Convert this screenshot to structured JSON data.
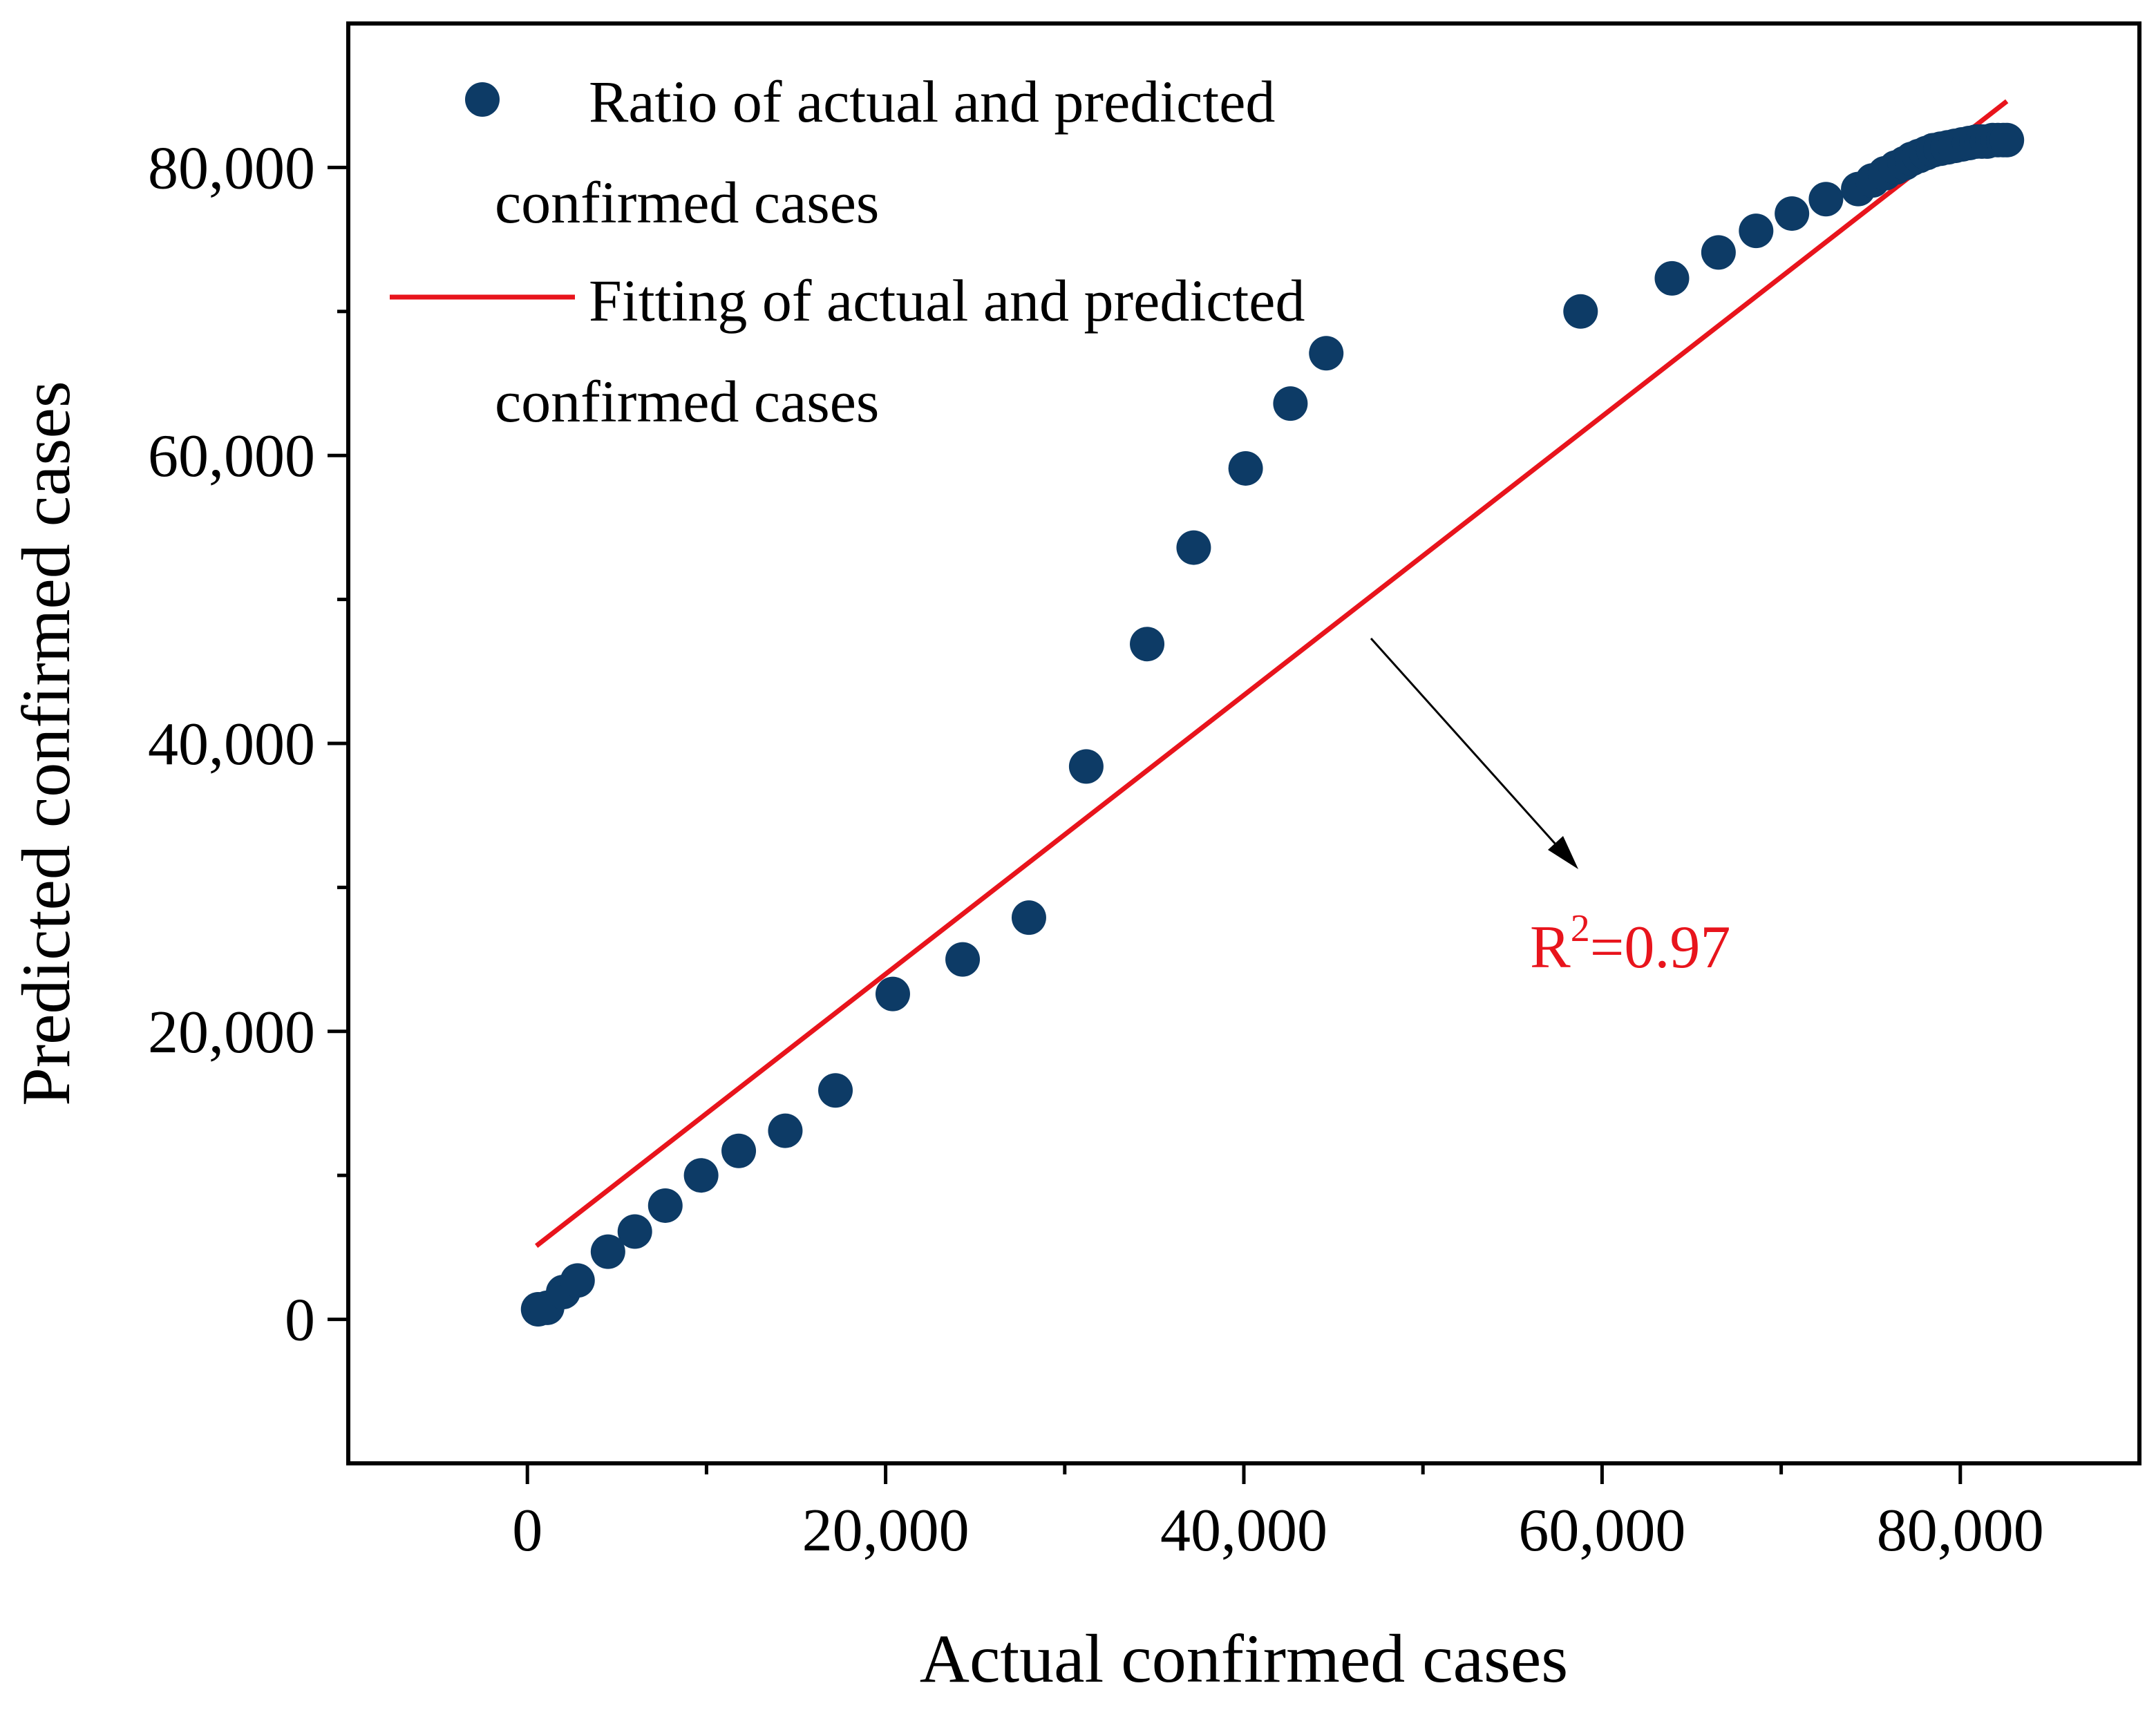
{
  "chart_data": {
    "type": "scatter",
    "xlabel": "Actual confirmed cases",
    "ylabel": "Predicted confirmed cases",
    "xlim": [
      -10000,
      90000
    ],
    "ylim": [
      -10000,
      90000
    ],
    "x_ticks": [
      0,
      20000,
      40000,
      60000,
      80000
    ],
    "x_tick_labels": [
      "0",
      "20,000",
      "40,000",
      "60,000",
      "80,000"
    ],
    "x_minor_ticks": [
      10000,
      30000,
      50000,
      70000
    ],
    "y_ticks": [
      0,
      20000,
      40000,
      60000,
      80000
    ],
    "y_tick_labels": [
      "0",
      "20,000",
      "40,000",
      "60,000",
      "80,000"
    ],
    "y_minor_ticks": [
      10000,
      30000,
      50000,
      70000
    ],
    "grid": false,
    "legend_position": "top-left",
    "series": [
      {
        "kind": "points",
        "legend_lines": [
          "Ratio of actual and predicted",
          "confirmed cases"
        ],
        "color": "#0d3b66",
        "x": [
          600,
          1100,
          2000,
          2800,
          4500,
          6000,
          7700,
          9700,
          11800,
          14400,
          17200,
          20400,
          24300,
          28000,
          31200,
          34600,
          37200,
          40100,
          42600,
          44600,
          58800,
          63900,
          66500,
          68600,
          70600,
          72500,
          74300,
          75100,
          75800,
          76400,
          76900,
          77300,
          77700,
          78100,
          78500,
          78900,
          79300,
          79700,
          80100,
          80500,
          80900,
          81200,
          81500,
          81800,
          82100,
          82400,
          82600
        ],
        "y": [
          700,
          800,
          1900,
          2700,
          4700,
          6100,
          7900,
          10000,
          11700,
          13100,
          15900,
          22600,
          25000,
          27900,
          38400,
          46900,
          53600,
          59100,
          63600,
          67100,
          70000,
          72300,
          74100,
          75600,
          76800,
          77800,
          78500,
          79100,
          79600,
          80000,
          80300,
          80600,
          80800,
          81000,
          81200,
          81300,
          81400,
          81500,
          81600,
          81700,
          81800,
          81800,
          81800,
          81900,
          81900,
          81900,
          81900
        ]
      },
      {
        "kind": "line",
        "legend_lines": [
          "Fitting of actual and predicted",
          "confirmed cases"
        ],
        "color": "#e8141c",
        "x": [
          500,
          82600
        ],
        "y": [
          5100,
          84600
        ]
      }
    ],
    "annotation": {
      "base": "R",
      "superscript": "2",
      "rest": "=0.97",
      "color": "#e8141c"
    }
  }
}
